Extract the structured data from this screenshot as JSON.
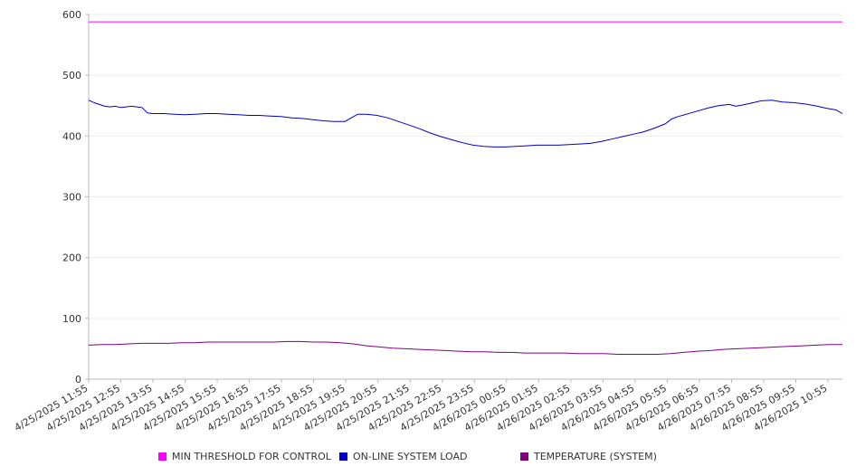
{
  "chart_data": {
    "type": "line",
    "title": "",
    "xlabel": "",
    "ylabel": "",
    "ylim": [
      0,
      600
    ],
    "y_ticks": [
      0,
      100,
      200,
      300,
      400,
      500,
      600
    ],
    "x_tick_labels": [
      "4/25/2025 11:55",
      "4/25/2025 12:55",
      "4/25/2025 13:55",
      "4/25/2025 14:55",
      "4/25/2025 15:55",
      "4/25/2025 16:55",
      "4/25/2025 17:55",
      "4/25/2025 18:55",
      "4/25/2025 19:55",
      "4/25/2025 20:55",
      "4/25/2025 21:55",
      "4/25/2025 22:55",
      "4/25/2025 23:55",
      "4/26/2025 00:55",
      "4/26/2025 01:55",
      "4/26/2025 02:55",
      "4/26/2025 03:55",
      "4/26/2025 04:55",
      "4/26/2025 05:55",
      "4/26/2025 06:55",
      "4/26/2025 07:55",
      "4/26/2025 08:55",
      "4/26/2025 09:55",
      "4/26/2025 10:55"
    ],
    "grid": true,
    "legend_position": "bottom",
    "series": [
      {
        "name": "MIN THRESHOLD FOR CONTROL",
        "color": "#ff00ff",
        "points": [
          [
            0,
            588
          ],
          [
            24,
            588
          ]
        ]
      },
      {
        "name": "ON-LINE SYSTEM LOAD",
        "color": "#0000cc",
        "points": [
          [
            0,
            459
          ],
          [
            0.25,
            455
          ],
          [
            0.5,
            452
          ],
          [
            0.75,
            449
          ],
          [
            1,
            448
          ],
          [
            1.25,
            449
          ],
          [
            1.5,
            447
          ],
          [
            1.75,
            448
          ],
          [
            2,
            449
          ],
          [
            2.25,
            448
          ],
          [
            2.5,
            447
          ],
          [
            2.75,
            438
          ],
          [
            3,
            437
          ],
          [
            3.5,
            437
          ],
          [
            4,
            436
          ],
          [
            4.5,
            435
          ],
          [
            5,
            436
          ],
          [
            5.5,
            437
          ],
          [
            6,
            437
          ],
          [
            6.5,
            436
          ],
          [
            7,
            435
          ],
          [
            7.5,
            434
          ],
          [
            8,
            434
          ],
          [
            8.5,
            433
          ],
          [
            9,
            432
          ],
          [
            9.5,
            430
          ],
          [
            10,
            429
          ],
          [
            10.5,
            427
          ],
          [
            11,
            425
          ],
          [
            11.5,
            424
          ],
          [
            12,
            424
          ],
          [
            12.3,
            430
          ],
          [
            12.6,
            436
          ],
          [
            13,
            436
          ],
          [
            13.5,
            434
          ],
          [
            14,
            430
          ],
          [
            14.5,
            424
          ],
          [
            15,
            418
          ],
          [
            15.5,
            412
          ],
          [
            16,
            405
          ],
          [
            16.5,
            399
          ],
          [
            17,
            394
          ],
          [
            17.5,
            389
          ],
          [
            18,
            385
          ],
          [
            18.5,
            383
          ],
          [
            19,
            382
          ],
          [
            19.5,
            382
          ],
          [
            20,
            383
          ],
          [
            20.5,
            384
          ],
          [
            21,
            385
          ],
          [
            21.5,
            385
          ],
          [
            22,
            385
          ],
          [
            22.5,
            386
          ],
          [
            23,
            387
          ],
          [
            23.5,
            388
          ],
          [
            24,
            391
          ],
          [
            24.5,
            395
          ],
          [
            25,
            399
          ],
          [
            25.5,
            403
          ],
          [
            26,
            407
          ],
          [
            26.5,
            413
          ],
          [
            27,
            420
          ],
          [
            27.3,
            428
          ],
          [
            27.6,
            432
          ],
          [
            28,
            436
          ],
          [
            28.5,
            441
          ],
          [
            29,
            446
          ],
          [
            29.5,
            450
          ],
          [
            30,
            452
          ],
          [
            30.3,
            449
          ],
          [
            30.6,
            451
          ],
          [
            31,
            454
          ],
          [
            31.5,
            458
          ],
          [
            32,
            459
          ],
          [
            32.5,
            456
          ],
          [
            33,
            455
          ],
          [
            33.5,
            453
          ],
          [
            34,
            450
          ],
          [
            34.5,
            446
          ],
          [
            35,
            443
          ],
          [
            35.3,
            437
          ]
        ]
      },
      {
        "name": "TEMPERATURE (SYSTEM)",
        "color": "#800080",
        "points": [
          [
            0,
            56
          ],
          [
            0.5,
            57
          ],
          [
            1,
            57
          ],
          [
            1.5,
            58
          ],
          [
            2,
            59
          ],
          [
            2.5,
            59
          ],
          [
            3,
            59
          ],
          [
            3.5,
            60
          ],
          [
            4,
            60
          ],
          [
            4.5,
            61
          ],
          [
            5,
            61
          ],
          [
            5.5,
            61
          ],
          [
            6,
            61
          ],
          [
            6.5,
            61
          ],
          [
            7,
            61
          ],
          [
            7.5,
            62
          ],
          [
            8,
            62
          ],
          [
            8.5,
            61
          ],
          [
            9,
            61
          ],
          [
            9.5,
            60
          ],
          [
            10,
            58
          ],
          [
            10.5,
            55
          ],
          [
            11,
            53
          ],
          [
            11.5,
            51
          ],
          [
            12,
            50
          ],
          [
            12.5,
            49
          ],
          [
            13,
            48
          ],
          [
            13.5,
            47
          ],
          [
            14,
            46
          ],
          [
            14.5,
            45
          ],
          [
            15,
            45
          ],
          [
            15.5,
            44
          ],
          [
            16,
            44
          ],
          [
            16.5,
            43
          ],
          [
            17,
            43
          ],
          [
            17.5,
            43
          ],
          [
            18,
            43
          ],
          [
            18.5,
            42
          ],
          [
            19,
            42
          ],
          [
            19.5,
            42
          ],
          [
            20,
            41
          ],
          [
            20.5,
            41
          ],
          [
            21,
            41
          ],
          [
            21.5,
            41
          ],
          [
            22,
            42
          ],
          [
            22.5,
            44
          ],
          [
            23,
            46
          ],
          [
            23.5,
            47
          ],
          [
            24,
            49
          ],
          [
            24.5,
            50
          ],
          [
            25,
            51
          ],
          [
            25.5,
            52
          ],
          [
            26,
            53
          ],
          [
            26.5,
            54
          ],
          [
            27,
            55
          ],
          [
            27.5,
            56
          ],
          [
            28,
            57
          ],
          [
            28.5,
            57
          ]
        ]
      }
    ]
  }
}
